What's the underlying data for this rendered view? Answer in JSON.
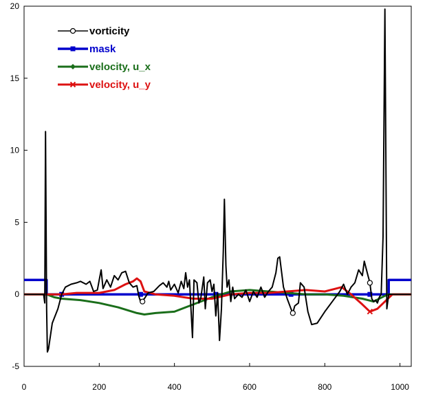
{
  "chart_data": {
    "type": "line",
    "title": "",
    "xlabel": "",
    "ylabel": "",
    "xlim": [
      0,
      1030
    ],
    "ylim": [
      -5,
      20
    ],
    "x_ticks": [
      0,
      200,
      400,
      600,
      800,
      1000
    ],
    "y_ticks": [
      -5,
      0,
      5,
      10,
      15,
      20
    ],
    "grid": false,
    "legend_position": "top-left",
    "series": [
      {
        "name": "vorticity",
        "color": "#000000",
        "marker": "circle",
        "points": [
          [
            0,
            0
          ],
          [
            52,
            0
          ],
          [
            55,
            -0.6
          ],
          [
            57,
            11.3
          ],
          [
            60,
            -1.0
          ],
          [
            62,
            -4.0
          ],
          [
            65,
            -3.8
          ],
          [
            75,
            -2.0
          ],
          [
            90,
            -1.0
          ],
          [
            100,
            0.0
          ],
          [
            110,
            0.5
          ],
          [
            125,
            0.7
          ],
          [
            140,
            0.8
          ],
          [
            150,
            0.9
          ],
          [
            165,
            0.7
          ],
          [
            175,
            0.9
          ],
          [
            185,
            0.2
          ],
          [
            195,
            0.3
          ],
          [
            200,
            1.0
          ],
          [
            205,
            1.7
          ],
          [
            210,
            0.4
          ],
          [
            220,
            1.0
          ],
          [
            230,
            0.5
          ],
          [
            240,
            1.3
          ],
          [
            250,
            1.0
          ],
          [
            260,
            1.5
          ],
          [
            270,
            1.6
          ],
          [
            280,
            0.8
          ],
          [
            290,
            0.5
          ],
          [
            300,
            0.6
          ],
          [
            305,
            -0.1
          ],
          [
            310,
            -0.5
          ],
          [
            320,
            -0.3
          ],
          [
            330,
            0.1
          ],
          [
            345,
            0.2
          ],
          [
            360,
            0.6
          ],
          [
            370,
            0.8
          ],
          [
            380,
            0.5
          ],
          [
            385,
            0.9
          ],
          [
            390,
            0.3
          ],
          [
            400,
            0.7
          ],
          [
            410,
            0.1
          ],
          [
            418,
            0.9
          ],
          [
            425,
            0.4
          ],
          [
            430,
            1.5
          ],
          [
            435,
            0.5
          ],
          [
            440,
            1.0
          ],
          [
            448,
            -3.0
          ],
          [
            452,
            1.0
          ],
          [
            460,
            0.8
          ],
          [
            465,
            -0.6
          ],
          [
            470,
            -0.3
          ],
          [
            478,
            1.2
          ],
          [
            482,
            -1.0
          ],
          [
            488,
            0.8
          ],
          [
            495,
            1.0
          ],
          [
            500,
            0.2
          ],
          [
            505,
            0.7
          ],
          [
            510,
            -1.5
          ],
          [
            515,
            0.1
          ],
          [
            520,
            -3.2
          ],
          [
            525,
            -1.0
          ],
          [
            530,
            3.0
          ],
          [
            533,
            6.6
          ],
          [
            537,
            2.0
          ],
          [
            540,
            0.5
          ],
          [
            545,
            1.0
          ],
          [
            550,
            -0.5
          ],
          [
            555,
            0.5
          ],
          [
            560,
            -0.3
          ],
          [
            570,
            0.0
          ],
          [
            580,
            -0.2
          ],
          [
            590,
            0.3
          ],
          [
            600,
            -0.5
          ],
          [
            610,
            0.2
          ],
          [
            620,
            -0.2
          ],
          [
            630,
            0.5
          ],
          [
            640,
            -0.2
          ],
          [
            650,
            0.2
          ],
          [
            660,
            0.5
          ],
          [
            670,
            1.5
          ],
          [
            675,
            2.5
          ],
          [
            680,
            2.6
          ],
          [
            690,
            0.5
          ],
          [
            700,
            -0.3
          ],
          [
            710,
            -1.0
          ],
          [
            715,
            -1.3
          ],
          [
            720,
            -0.8
          ],
          [
            730,
            -0.6
          ],
          [
            735,
            0.8
          ],
          [
            745,
            0.5
          ],
          [
            755,
            -1.2
          ],
          [
            765,
            -2.1
          ],
          [
            780,
            -2.0
          ],
          [
            800,
            -1.2
          ],
          [
            820,
            -0.5
          ],
          [
            840,
            0.2
          ],
          [
            850,
            0.7
          ],
          [
            860,
            0.0
          ],
          [
            870,
            0.5
          ],
          [
            880,
            0.8
          ],
          [
            890,
            1.7
          ],
          [
            900,
            1.3
          ],
          [
            905,
            2.3
          ],
          [
            910,
            1.8
          ],
          [
            915,
            1.3
          ],
          [
            920,
            0.8
          ],
          [
            925,
            -0.3
          ],
          [
            930,
            -0.5
          ],
          [
            935,
            -0.4
          ],
          [
            940,
            -0.6
          ],
          [
            945,
            -0.2
          ],
          [
            950,
            0.0
          ],
          [
            955,
            4.0
          ],
          [
            960,
            19.8
          ],
          [
            965,
            -1.0
          ],
          [
            970,
            0.0
          ],
          [
            1030,
            0.0
          ]
        ],
        "marker_points": [
          [
            315,
            -0.5
          ],
          [
            715,
            -1.3
          ],
          [
            920,
            0.8
          ]
        ]
      },
      {
        "name": "mask",
        "color": "#0000cc",
        "marker": "square",
        "points": [
          [
            0,
            1.0
          ],
          [
            60,
            1.0
          ],
          [
            60,
            0.0
          ],
          [
            970,
            0.0
          ],
          [
            970,
            1.0
          ],
          [
            1030,
            1.0
          ]
        ],
        "marker_points": [
          [
            100,
            0
          ],
          [
            310,
            0
          ],
          [
            510,
            0
          ],
          [
            710,
            0
          ],
          [
            920,
            0
          ]
        ]
      },
      {
        "name": "velocity, u_x",
        "color": "#1a6e1a",
        "marker": "diamond",
        "points": [
          [
            0,
            0
          ],
          [
            60,
            0
          ],
          [
            80,
            -0.2
          ],
          [
            100,
            -0.3
          ],
          [
            150,
            -0.4
          ],
          [
            200,
            -0.6
          ],
          [
            250,
            -0.9
          ],
          [
            300,
            -1.3
          ],
          [
            320,
            -1.4
          ],
          [
            350,
            -1.3
          ],
          [
            400,
            -1.2
          ],
          [
            450,
            -0.7
          ],
          [
            500,
            -0.2
          ],
          [
            550,
            0.2
          ],
          [
            600,
            0.3
          ],
          [
            650,
            0.2
          ],
          [
            700,
            0.1
          ],
          [
            750,
            0.0
          ],
          [
            800,
            0.0
          ],
          [
            850,
            -0.1
          ],
          [
            900,
            -0.3
          ],
          [
            930,
            -0.5
          ],
          [
            960,
            -0.1
          ],
          [
            970,
            0
          ],
          [
            1030,
            0
          ]
        ],
        "marker_points": []
      },
      {
        "name": "velocity, u_y",
        "color": "#dd1111",
        "marker": "x",
        "points": [
          [
            0,
            0
          ],
          [
            100,
            0
          ],
          [
            140,
            0.1
          ],
          [
            200,
            0.1
          ],
          [
            240,
            0.3
          ],
          [
            270,
            0.7
          ],
          [
            290,
            0.9
          ],
          [
            300,
            1.1
          ],
          [
            310,
            0.9
          ],
          [
            320,
            0.2
          ],
          [
            350,
            0.0
          ],
          [
            400,
            -0.1
          ],
          [
            450,
            -0.3
          ],
          [
            500,
            -0.3
          ],
          [
            550,
            0.0
          ],
          [
            600,
            0.1
          ],
          [
            650,
            0.1
          ],
          [
            700,
            0.2
          ],
          [
            750,
            0.3
          ],
          [
            800,
            0.2
          ],
          [
            830,
            0.4
          ],
          [
            845,
            0.5
          ],
          [
            855,
            0.3
          ],
          [
            870,
            0.0
          ],
          [
            900,
            -0.7
          ],
          [
            920,
            -1.2
          ],
          [
            940,
            -1.0
          ],
          [
            960,
            -0.5
          ],
          [
            980,
            0.0
          ],
          [
            1030,
            0.0
          ]
        ],
        "marker_points": [
          [
            920,
            -1.2
          ]
        ]
      }
    ]
  }
}
